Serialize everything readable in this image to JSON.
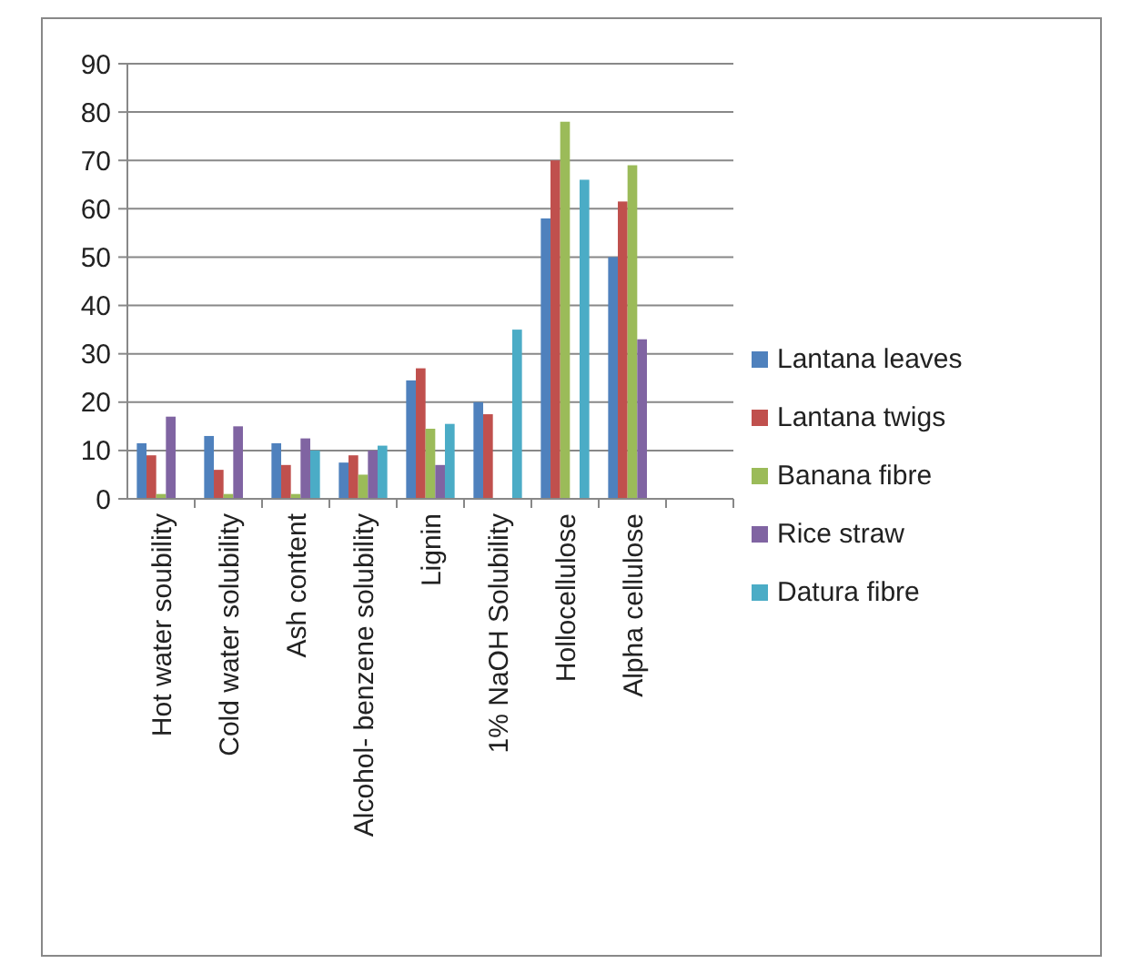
{
  "chart_data": {
    "type": "bar",
    "categories": [
      "Hot water soubility",
      "Cold water solubility",
      "Ash content",
      "Alcohol- benzene solubility",
      "Lignin",
      "1% NaOH Solubility",
      "Hollocellulose",
      "Alpha cellulose",
      null
    ],
    "series": [
      {
        "name": "Lantana leaves",
        "color": "#4f81bd",
        "values": [
          11.5,
          13,
          11.5,
          7.5,
          24.5,
          20,
          58,
          50,
          null
        ]
      },
      {
        "name": "Lantana twigs",
        "color": "#c0504d",
        "values": [
          9,
          6,
          7,
          9,
          27,
          17.5,
          70,
          61.5,
          null
        ]
      },
      {
        "name": "Banana fibre",
        "color": "#9bbb59",
        "values": [
          1,
          1,
          1,
          5,
          14.5,
          null,
          78,
          69,
          null
        ]
      },
      {
        "name": "Rice straw",
        "color": "#8064a2",
        "values": [
          17,
          15,
          12.5,
          10,
          7,
          null,
          null,
          33,
          null
        ]
      },
      {
        "name": "Datura fibre",
        "color": "#4bacc6",
        "values": [
          null,
          null,
          10,
          11,
          15.5,
          35,
          66,
          null,
          null
        ]
      }
    ],
    "ylim": [
      0,
      90
    ],
    "yticks": [
      0,
      10,
      20,
      30,
      40,
      50,
      60,
      70,
      80,
      90
    ],
    "grid": "y",
    "legend": "right"
  }
}
